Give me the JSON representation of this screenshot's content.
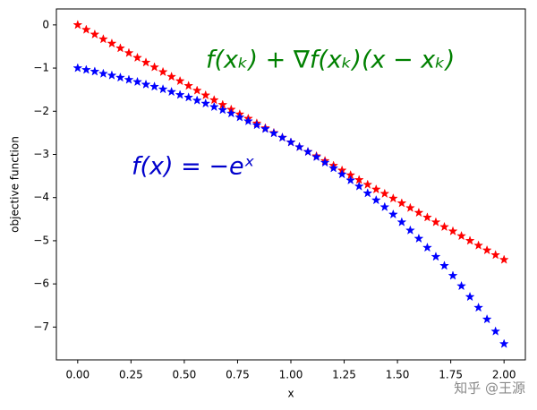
{
  "chart_data": {
    "type": "scatter",
    "xlabel": "x",
    "ylabel": "objective function",
    "x": [
      0,
      0.04,
      0.08,
      0.12,
      0.16,
      0.2,
      0.24,
      0.28,
      0.32,
      0.36,
      0.4,
      0.44,
      0.48,
      0.52,
      0.56,
      0.6,
      0.64,
      0.68,
      0.72,
      0.76,
      0.8,
      0.84,
      0.88,
      0.92,
      0.96,
      1,
      1.04,
      1.08,
      1.12,
      1.16,
      1.2,
      1.24,
      1.28,
      1.32,
      1.36,
      1.4,
      1.44,
      1.48,
      1.52,
      1.56,
      1.6,
      1.64,
      1.68,
      1.72,
      1.76,
      1.8,
      1.84,
      1.88,
      1.92,
      1.96,
      2
    ],
    "series": [
      {
        "color": "#ff0000",
        "values": [
          0,
          -0.11,
          -0.22,
          -0.33,
          -0.43,
          -0.54,
          -0.65,
          -0.76,
          -0.87,
          -0.98,
          -1.09,
          -1.2,
          -1.3,
          -1.41,
          -1.52,
          -1.63,
          -1.74,
          -1.85,
          -1.96,
          -2.07,
          -2.17,
          -2.28,
          -2.39,
          -2.5,
          -2.61,
          -2.72,
          -2.83,
          -2.94,
          -3.04,
          -3.15,
          -3.26,
          -3.37,
          -3.48,
          -3.59,
          -3.7,
          -3.81,
          -3.91,
          -4.02,
          -4.13,
          -4.24,
          -4.35,
          -4.46,
          -4.57,
          -4.68,
          -4.78,
          -4.89,
          -5,
          -5.11,
          -5.22,
          -5.33,
          -5.44
        ]
      },
      {
        "color": "#0000ff",
        "values": [
          -1,
          -1.04,
          -1.08,
          -1.13,
          -1.17,
          -1.22,
          -1.27,
          -1.32,
          -1.38,
          -1.43,
          -1.49,
          -1.55,
          -1.62,
          -1.68,
          -1.75,
          -1.82,
          -1.9,
          -1.97,
          -2.05,
          -2.14,
          -2.23,
          -2.32,
          -2.41,
          -2.51,
          -2.61,
          -2.72,
          -2.83,
          -2.94,
          -3.06,
          -3.19,
          -3.32,
          -3.46,
          -3.6,
          -3.74,
          -3.9,
          -4.06,
          -4.22,
          -4.39,
          -4.57,
          -4.76,
          -4.95,
          -5.16,
          -5.37,
          -5.58,
          -5.81,
          -6.05,
          -6.3,
          -6.55,
          -6.82,
          -7.1,
          -7.39
        ]
      }
    ],
    "annotations": [
      {
        "text": "f(xₖ) + ∇f(xₖ)(x − xₖ)",
        "color": "#008000"
      },
      {
        "text": "f(x) = −eˣ",
        "color": "#0000cc"
      }
    ],
    "watermark": "知乎 @王源",
    "xlim": [
      -0.1,
      2.1
    ],
    "ylim": [
      -7.76,
      0.37
    ],
    "xticks": [
      {
        "value": 0,
        "label": "0.00"
      },
      {
        "value": 0.25,
        "label": "0.25"
      },
      {
        "value": 0.5,
        "label": "0.50"
      },
      {
        "value": 0.75,
        "label": "0.75"
      },
      {
        "value": 1,
        "label": "1.00"
      },
      {
        "value": 1.25,
        "label": "1.25"
      },
      {
        "value": 1.5,
        "label": "1.50"
      },
      {
        "value": 1.75,
        "label": "1.75"
      },
      {
        "value": 2,
        "label": "2.00"
      }
    ],
    "yticks": [
      0,
      {
        "value": -1,
        "label": "−1"
      },
      {
        "value": -2,
        "label": "−2"
      },
      {
        "value": -3,
        "label": "−3"
      },
      {
        "value": -4,
        "label": "−4"
      },
      {
        "value": -5,
        "label": "−5"
      },
      {
        "value": -6,
        "label": "−6"
      },
      {
        "value": -7,
        "label": "−7"
      }
    ],
    "grid": false
  }
}
